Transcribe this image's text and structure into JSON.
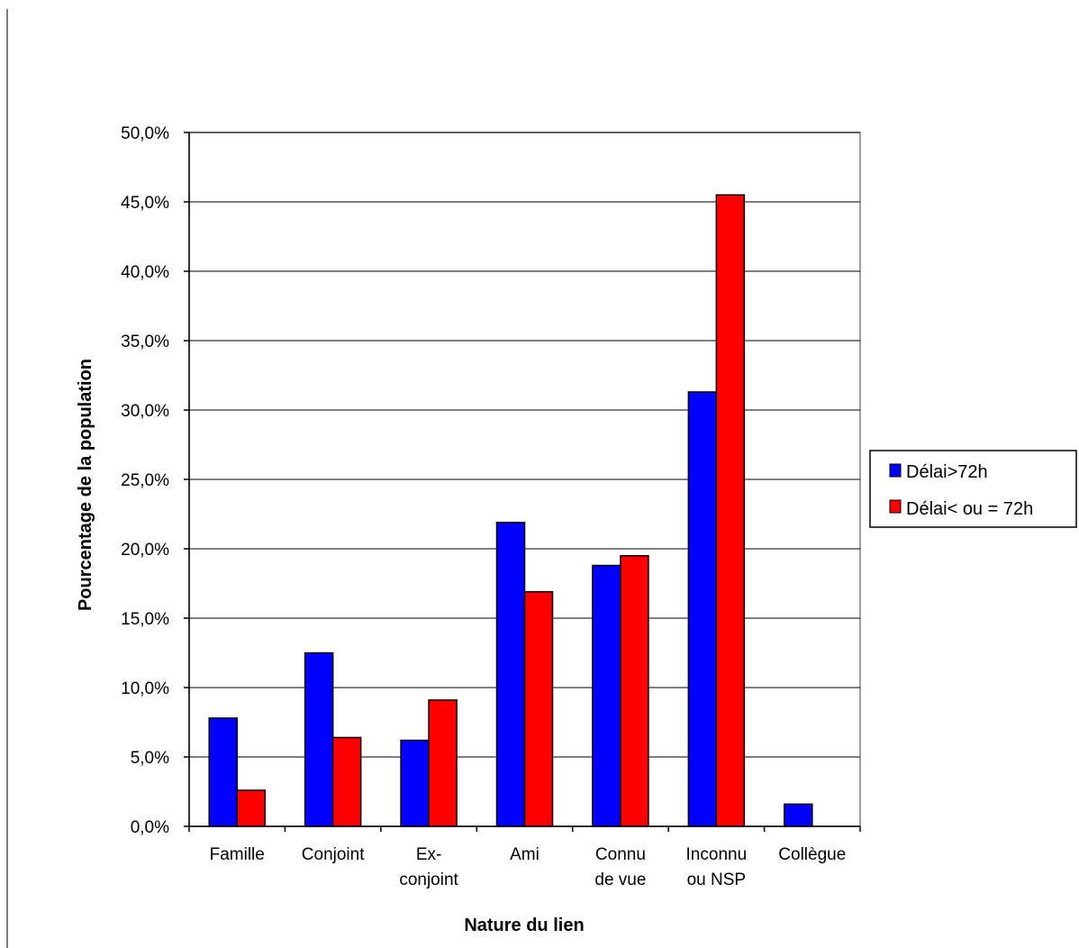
{
  "chart_data": {
    "type": "bar",
    "title": "",
    "xlabel": "Nature du lien",
    "ylabel": "Pourcentage de la population",
    "ylim": [
      0,
      50
    ],
    "y_ticks": [
      "0,0%",
      "5,0%",
      "10,0%",
      "15,0%",
      "20,0%",
      "25,0%",
      "30,0%",
      "35,0%",
      "40,0%",
      "45,0%",
      "50,0%"
    ],
    "grid": true,
    "legend_position": "right",
    "categories": [
      [
        "Famille"
      ],
      [
        "Conjoint"
      ],
      [
        "Ex-",
        "conjoint"
      ],
      [
        "Ami"
      ],
      [
        "Connu",
        "de vue"
      ],
      [
        "Inconnu",
        "ou NSP"
      ],
      [
        "Collègue"
      ]
    ],
    "series": [
      {
        "name": "Délai>72h",
        "color": "#0000ff",
        "values": [
          7.8,
          12.5,
          6.2,
          21.9,
          18.8,
          31.3,
          1.6
        ]
      },
      {
        "name": "Délai< ou = 72h",
        "color": "#ff0000",
        "values": [
          2.6,
          6.4,
          9.1,
          16.9,
          19.5,
          45.5,
          0
        ]
      }
    ]
  }
}
